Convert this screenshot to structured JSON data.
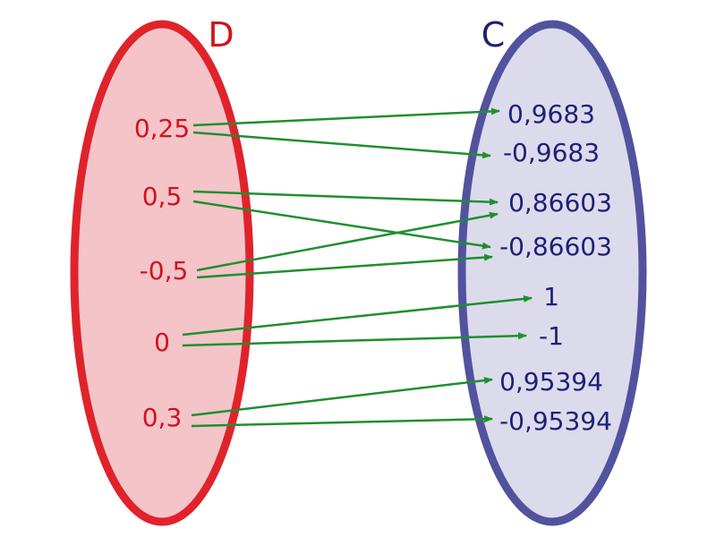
{
  "colors": {
    "domain_stroke": "#e0232b",
    "domain_fill": "#f4c4c9",
    "domain_text": "#d3121b",
    "codomain_stroke": "#52529e",
    "codomain_fill": "#dcdbec",
    "codomain_text": "#1f1f78",
    "arrow": "#1f8f2e"
  },
  "domain": {
    "title": "D",
    "elements": [
      "0,25",
      "0,5",
      "-0,5",
      "0",
      "0,3"
    ]
  },
  "codomain": {
    "title": "C",
    "elements": [
      "0,9683",
      "-0,9683",
      "0,86603",
      "-0,86603",
      "1",
      "-1",
      "0,95394",
      "-0,95394"
    ]
  },
  "mappings": [
    {
      "from": "0,25",
      "to": "0,9683"
    },
    {
      "from": "0,25",
      "to": "-0,9683"
    },
    {
      "from": "0,5",
      "to": "0,86603"
    },
    {
      "from": "0,5",
      "to": "-0,86603"
    },
    {
      "from": "-0,5",
      "to": "0,86603"
    },
    {
      "from": "-0,5",
      "to": "-0,86603"
    },
    {
      "from": "0",
      "to": "1"
    },
    {
      "from": "0",
      "to": "-1"
    },
    {
      "from": "0,3",
      "to": "0,95394"
    },
    {
      "from": "0,3",
      "to": "-0,95394"
    }
  ]
}
